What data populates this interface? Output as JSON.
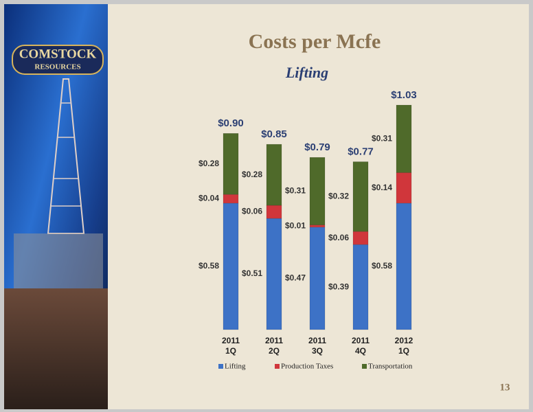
{
  "logo": {
    "line1": "COMSTOCK",
    "line2": "RESOURCES"
  },
  "page_number": "13",
  "chart_data": {
    "type": "stacked_bar",
    "title": "Costs per Mcfe",
    "subtitle": "Lifting",
    "categories": [
      [
        "2011",
        "1Q"
      ],
      [
        "2011",
        "2Q"
      ],
      [
        "2011",
        "3Q"
      ],
      [
        "2011",
        "4Q"
      ],
      [
        "2012",
        "1Q"
      ]
    ],
    "series": [
      {
        "name": "Lifting",
        "color": "#3d72c6",
        "values": [
          0.58,
          0.51,
          0.47,
          0.39,
          0.58
        ],
        "value_labels": [
          "$0.58",
          "$0.51",
          "$0.47",
          "$0.39",
          "$0.58"
        ]
      },
      {
        "name": "Production Taxes",
        "color": "#d0363b",
        "values": [
          0.04,
          0.06,
          0.01,
          0.06,
          0.14
        ],
        "value_labels": [
          "$0.04",
          "$0.06",
          "$0.01",
          "$0.06",
          "$0.14"
        ]
      },
      {
        "name": "Transportation",
        "color": "#4f6a2a",
        "values": [
          0.28,
          0.28,
          0.31,
          0.32,
          0.31
        ],
        "value_labels": [
          "$0.28",
          "$0.28",
          "$0.31",
          "$0.32",
          "$0.31"
        ]
      }
    ],
    "totals": {
      "values": [
        0.9,
        0.85,
        0.79,
        0.77,
        1.03
      ],
      "value_labels": [
        "$0.90",
        "$0.85",
        "$0.79",
        "$0.77",
        "$1.03"
      ]
    },
    "legend": "bottom"
  }
}
